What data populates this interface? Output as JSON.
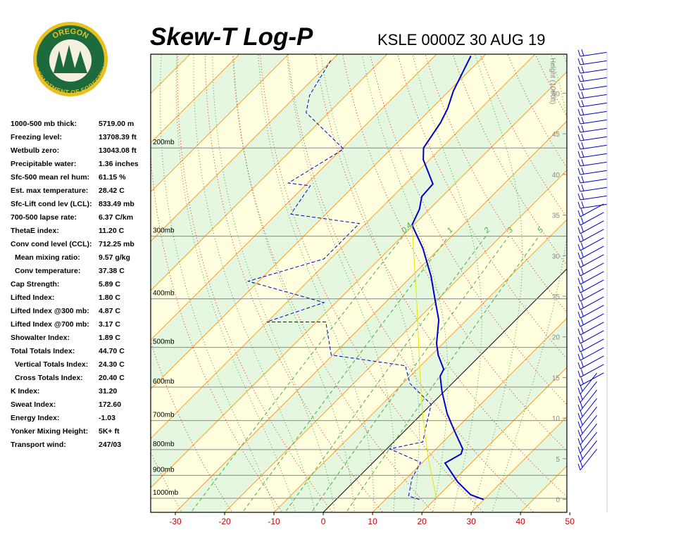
{
  "logo": {
    "top": "OREGON",
    "bottom": "DEPARTMENT OF FORESTRY"
  },
  "chart_data": {
    "type": "skewt",
    "title": "Skew-T Log-P",
    "subtitle": "KSLE 0000Z 30 AUG 19",
    "y2label": "Height (1000ft)",
    "xlim": [
      -35,
      49.4
    ],
    "xticks": [
      -30,
      -20,
      -10,
      0,
      10,
      20,
      30,
      40,
      50
    ],
    "tick_color": "#cc0000",
    "ylim": [
      1067,
      130
    ],
    "log_y": true,
    "yticks": [
      {
        "value": 200,
        "label": "200mb"
      },
      {
        "value": 300,
        "label": "300mb"
      },
      {
        "value": 400,
        "label": "400mb"
      },
      {
        "value": 500,
        "label": "500mb"
      },
      {
        "value": 600,
        "label": "600mb"
      },
      {
        "value": 700,
        "label": "700mb"
      },
      {
        "value": 800,
        "label": "800mb"
      },
      {
        "value": 900,
        "label": "900mb"
      },
      {
        "value": 1000,
        "label": "1000mb"
      }
    ],
    "y2lim": [
      -1.6,
      54.8
    ],
    "y2ticks": [
      0,
      5,
      10,
      15,
      20,
      25,
      30,
      35,
      40,
      45,
      50
    ],
    "mixing_ratios": [
      0.4,
      1,
      2,
      3,
      5
    ],
    "series": [
      {
        "color": "#0000cc",
        "style": "solid",
        "x": [
          29.9,
          26.3,
          21.1,
          14.7,
          16.1,
          15.4,
          10.0,
          5.1,
          -0.4,
          -3.9,
          -4.6,
          -8.6,
          -11.3,
          -15.6,
          -20.7,
          -26.0,
          -33.4,
          -40.3,
          -42.0,
          -44.1,
          -44.4,
          -51.3,
          -53.6,
          -55.3,
          -56.7,
          -59.1,
          -62.7
        ],
        "values": [
          1006,
          984,
          928,
          851,
          816,
          797,
          733,
          678,
          613,
          571,
          553,
          518,
          491,
          441,
          400,
          361,
          317,
          285,
          265,
          250,
          236,
          211,
          200,
          178,
          167,
          154,
          131
        ]
      },
      {
        "color": "#0000cc",
        "style": "dashed",
        "x": [
          16.9,
          14.0,
          11.1,
          9.6,
          0.6,
          5.9,
          3.3,
          0,
          -8.6,
          -13.1,
          -30.3,
          -38.1,
          -50.1,
          -42.4,
          -62.1,
          -51.3,
          -51.3,
          -67.1,
          -68.9,
          -73.9,
          -69.6,
          -84.6,
          -87.4,
          -90.3
        ],
        "values": [
          1006,
          990,
          913,
          848,
          797,
          772,
          717,
          650,
          590,
          544,
          518,
          445,
          445,
          407,
          369,
          333,
          283,
          271,
          238,
          235,
          201,
          170,
          157,
          133
        ]
      },
      {
        "color": "#e6e600",
        "style": "solid",
        "x": [
          20.4,
          10.1,
          0.4,
          -8.7,
          -23.6,
          -40.3
        ],
        "values": [
          1006,
          829,
          682,
          562,
          407,
          285
        ]
      }
    ],
    "indices": [
      {
        "label": "1000-500 mb thick:",
        "value": "5719.00 m"
      },
      {
        "label": "Freezing level:",
        "value": "13708.39 ft"
      },
      {
        "label": "Wetbulb zero:",
        "value": "13043.08 ft"
      },
      {
        "label": "Precipitable water:",
        "value": "1.36 inches"
      },
      {
        "label": "Sfc-500 mean rel hum:",
        "value": "61.15 %"
      },
      {
        "label": "Est. max temperature:",
        "value": "28.42 C"
      },
      {
        "label": "Sfc-Lift cond lev (LCL):",
        "value": "833.49 mb"
      },
      {
        "label": "700-500 lapse rate:",
        "value": "6.37 C/km"
      },
      {
        "label": "ThetaE index:",
        "value": "11.20 C"
      },
      {
        "label": "Conv cond level (CCL):",
        "value": "712.25 mb"
      },
      {
        "label": "Mean mixing ratio:",
        "value": "9.57 g/kg"
      },
      {
        "label": "Conv temperature:",
        "value": "37.38 C"
      },
      {
        "label": "Cap Strength:",
        "value": "5.89 C"
      },
      {
        "label": "Lifted Index:",
        "value": "1.80 C"
      },
      {
        "label": "Lifted Index @300 mb:",
        "value": "4.87 C"
      },
      {
        "label": "Lifted Index @700 mb:",
        "value": "3.17 C"
      },
      {
        "label": "Showalter Index:",
        "value": "1.89 C"
      },
      {
        "label": "Total Totals Index:",
        "value": "44.70 C"
      },
      {
        "label": "Vertical Totals Index:",
        "value": "24.30 C"
      },
      {
        "label": "Cross Totals Index:",
        "value": "20.40 C"
      },
      {
        "label": "K Index:",
        "value": "31.20"
      },
      {
        "label": "Sweat Index:",
        "value": "172.60"
      },
      {
        "label": "Energy Index:",
        "value": "-1.03"
      },
      {
        "label": "Yonker Mixing Height:",
        "value": "5K+ ft"
      },
      {
        "label": "Transport wind:",
        "value": "247/03"
      }
    ]
  }
}
